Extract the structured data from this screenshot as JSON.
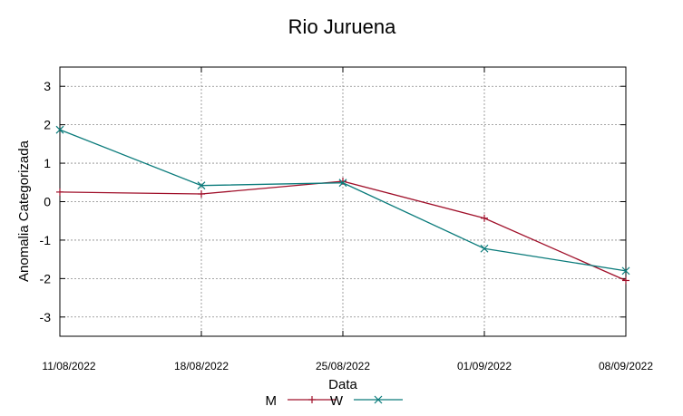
{
  "chart_data": {
    "type": "line",
    "title": "Rio Juruena",
    "xlabel": "Data",
    "ylabel": "Anomalia Categorizada",
    "categories": [
      "11/08/2022",
      "18/08/2022",
      "25/08/2022",
      "01/09/2022",
      "08/09/2022"
    ],
    "ylim": [
      -3.5,
      3.5
    ],
    "yticks": [
      "-3",
      "-2",
      "-1",
      "0",
      "1",
      "2",
      "3"
    ],
    "grid": true,
    "legend_position": "bottom-center",
    "series": [
      {
        "name": "M",
        "color": "#a0102a",
        "marker": "plus",
        "values": [
          0.25,
          0.2,
          0.53,
          -0.43,
          -2.05
        ]
      },
      {
        "name": "W",
        "color": "#0a7b7b",
        "marker": "cross",
        "values": [
          1.87,
          0.42,
          0.49,
          -1.22,
          -1.8
        ]
      }
    ]
  }
}
